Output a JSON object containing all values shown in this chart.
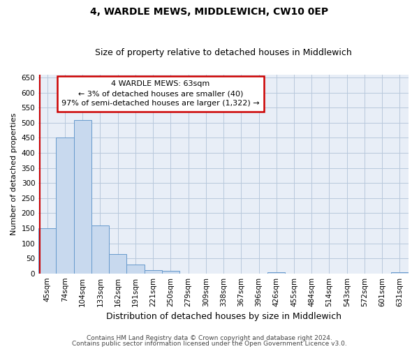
{
  "title": "4, WARDLE MEWS, MIDDLEWICH, CW10 0EP",
  "subtitle": "Size of property relative to detached houses in Middlewich",
  "xlabel": "Distribution of detached houses by size in Middlewich",
  "ylabel": "Number of detached properties",
  "categories": [
    "45sqm",
    "74sqm",
    "104sqm",
    "133sqm",
    "162sqm",
    "191sqm",
    "221sqm",
    "250sqm",
    "279sqm",
    "309sqm",
    "338sqm",
    "367sqm",
    "396sqm",
    "426sqm",
    "455sqm",
    "484sqm",
    "514sqm",
    "543sqm",
    "572sqm",
    "601sqm",
    "631sqm"
  ],
  "values": [
    150,
    450,
    510,
    160,
    65,
    30,
    12,
    8,
    0,
    0,
    0,
    0,
    0,
    5,
    0,
    0,
    0,
    0,
    0,
    0,
    5
  ],
  "bar_color": "#c8d9ee",
  "bar_edge_color": "#6699cc",
  "vline_color": "#cc0000",
  "vline_x": -0.425,
  "ylim": [
    0,
    660
  ],
  "yticks": [
    0,
    50,
    100,
    150,
    200,
    250,
    300,
    350,
    400,
    450,
    500,
    550,
    600,
    650
  ],
  "annotation_title": "4 WARDLE MEWS: 63sqm",
  "annotation_line1": "← 3% of detached houses are smaller (40)",
  "annotation_line2": "97% of semi-detached houses are larger (1,322) →",
  "annotation_box_color": "#ffffff",
  "annotation_box_edge": "#cc0000",
  "footer1": "Contains HM Land Registry data © Crown copyright and database right 2024.",
  "footer2": "Contains public sector information licensed under the Open Government Licence v3.0.",
  "bg_color": "#ffffff",
  "plot_bg_color": "#e8eef7",
  "grid_color": "#b8c8dc",
  "title_fontsize": 10,
  "subtitle_fontsize": 9,
  "xlabel_fontsize": 9,
  "ylabel_fontsize": 8,
  "tick_fontsize": 7.5,
  "annot_fontsize": 8,
  "footer_fontsize": 6.5
}
